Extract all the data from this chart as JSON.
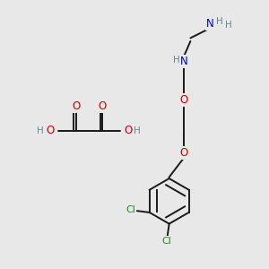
{
  "bg_color": "#e8e8e8",
  "atom_colors": {
    "C": "#1a1a1a",
    "H": "#5f8a8b",
    "N": "#0000cc",
    "O": "#cc0000",
    "Cl": "#228B22"
  },
  "bond_color": "#1a1a1a",
  "bond_width": 1.4,
  "font_size_atom": 8.5,
  "font_size_h": 7.5,
  "font_size_cl": 8.0
}
